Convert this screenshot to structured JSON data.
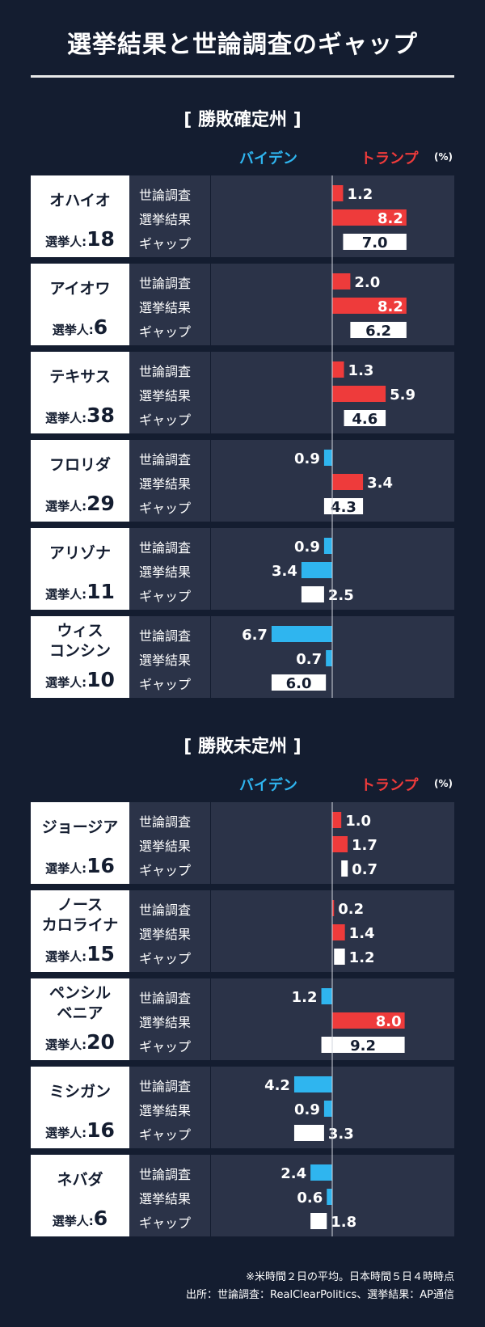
{
  "title": "選挙結果と世論調査のギャップ",
  "row_labels": [
    "世論調査",
    "選挙結果",
    "ギャップ"
  ],
  "legend": {
    "biden": "バイデン",
    "trump": "トランプ",
    "unit": "(%)"
  },
  "elector_label": "選挙人:",
  "colors": {
    "biden": "#2fb5ef",
    "trump": "#ee3b3b",
    "gap": "#ffffff",
    "background": "#141d30",
    "panel": "#2b3348"
  },
  "footnote": {
    "line1": "※米時間２日の平均。日本時間５日４時時点",
    "line2": "出所：世論調査：RealClearPolitics、選挙結果：AP通信"
  },
  "chart_data": [
    {
      "type": "bar",
      "title": "勝敗確定州",
      "xlim": [
        -10,
        10
      ],
      "states": [
        {
          "name": "オハイオ",
          "electors": "18",
          "poll": 1.2,
          "result": 8.2,
          "gap": 7.0
        },
        {
          "name": "アイオワ",
          "electors": "6",
          "poll": 2.0,
          "result": 8.2,
          "gap": 6.2
        },
        {
          "name": "テキサス",
          "electors": "38",
          "poll": 1.3,
          "result": 5.9,
          "gap": 4.6
        },
        {
          "name": "フロリダ",
          "electors": "29",
          "poll": -0.9,
          "result": 3.4,
          "gap": 4.3
        },
        {
          "name": "アリゾナ",
          "electors": "11",
          "poll": -0.9,
          "result": -3.4,
          "gap": 2.5
        },
        {
          "name": "ウィス\nコンシン",
          "electors": "10",
          "poll": -6.7,
          "result": -0.7,
          "gap": 6.0
        }
      ]
    },
    {
      "type": "bar",
      "title": "勝敗未定州",
      "xlim": [
        -10,
        10
      ],
      "states": [
        {
          "name": "ジョージア",
          "electors": "16",
          "poll": 1.0,
          "result": 1.7,
          "gap": 0.7
        },
        {
          "name": "ノース\nカロライナ",
          "electors": "15",
          "poll": 0.2,
          "result": 1.4,
          "gap": 1.2
        },
        {
          "name": "ペンシル\nベニア",
          "electors": "20",
          "poll": -1.2,
          "result": 8.0,
          "gap": 9.2
        },
        {
          "name": "ミシガン",
          "electors": "16",
          "poll": -4.2,
          "result": -0.9,
          "gap": 3.3
        },
        {
          "name": "ネバダ",
          "electors": "6",
          "poll": -2.4,
          "result": -0.6,
          "gap": 1.8
        }
      ]
    }
  ]
}
